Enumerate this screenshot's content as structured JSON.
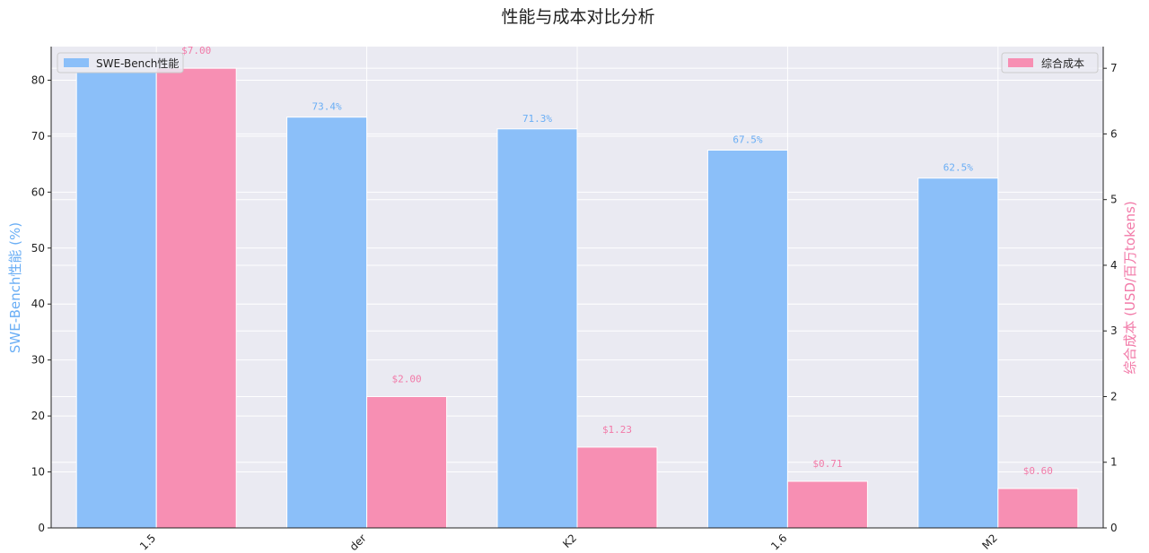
{
  "chart_data": {
    "type": "bar",
    "title": "性能与成本对比分析",
    "categories": [
      "1.5",
      "der",
      "K2",
      "1.6",
      "M2"
    ],
    "series": [
      {
        "name": "SWE-Bench性能",
        "axis": "left",
        "color": "#8bbff9",
        "values": [
          81.5,
          73.4,
          71.3,
          67.5,
          62.5
        ],
        "labels": [
          "",
          "73.4%",
          "71.3%",
          "67.5%",
          "62.5%"
        ]
      },
      {
        "name": "综合成本",
        "axis": "right",
        "color": "#f78fb3",
        "values": [
          7.0,
          2.0,
          1.23,
          0.71,
          0.6
        ],
        "labels": [
          "$7.00",
          "$2.00",
          "$1.23",
          "$0.71",
          "$0.60"
        ]
      }
    ],
    "ylabel_left": "SWE-Bench性能 (%)",
    "ylabel_right": "综合成本 (USD/百万tokens)",
    "ylim_left": [
      0,
      86
    ],
    "ylim_right": [
      0,
      7.33
    ],
    "yticks_left": [
      0,
      10,
      20,
      30,
      40,
      50,
      60,
      70,
      80
    ],
    "yticks_right": [
      0,
      1,
      2,
      3,
      4,
      5,
      6,
      7
    ],
    "grid": true,
    "legend_left_placement": "top-left",
    "legend_right_placement": "top-right"
  },
  "colors": {
    "plot_bg": "#eaeaf2",
    "grid": "#ffffff",
    "left_axis_label": "#6aaef5",
    "right_axis_label": "#f27aa8",
    "left_data_label": "#6aaef5",
    "right_data_label": "#f27aa8"
  }
}
